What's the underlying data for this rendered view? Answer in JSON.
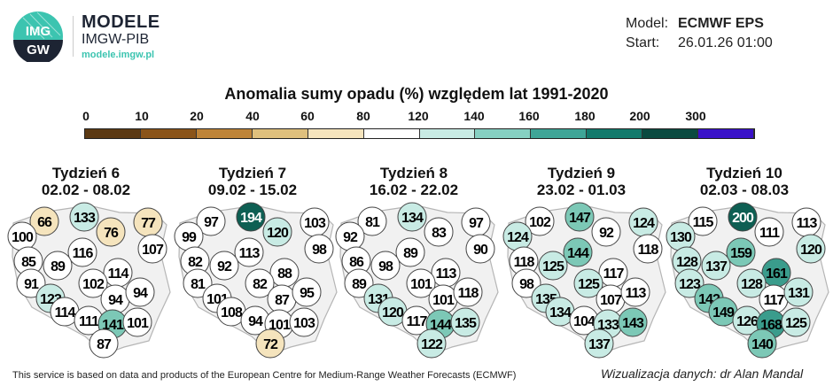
{
  "header": {
    "brand_name": "MODELE",
    "brand_org": "IMGW-PIB",
    "brand_url": "modele.imgw.pl",
    "logo_text": "IMGW",
    "model_label": "Model:",
    "model_value": "ECMWF EPS",
    "start_label": "Start:",
    "start_value": "26.01.26 01:00"
  },
  "title": "Anomalia sumy opadu (%) względem lat 1991-2020",
  "legend": {
    "ticks": [
      "0",
      "10",
      "20",
      "40",
      "60",
      "80",
      "120",
      "140",
      "160",
      "180",
      "200",
      "300"
    ],
    "colors": [
      "#5b3913",
      "#8a5419",
      "#be8438",
      "#dfc07d",
      "#f5e4bd",
      "#ffffff",
      "#c8ebe4",
      "#86d0c2",
      "#3fa597",
      "#137a6c",
      "#0b4a40",
      "#3a12c8"
    ]
  },
  "weeks": [
    {
      "label": "Tydzień 6",
      "range": "02.02 - 08.02",
      "values": [
        66,
        133,
        76,
        77,
        100,
        116,
        107,
        85,
        89,
        114,
        91,
        102,
        94,
        94,
        123,
        114,
        111,
        141,
        101,
        87
      ]
    },
    {
      "label": "Tydzień 7",
      "range": "09.02 - 15.02",
      "values": [
        97,
        194,
        120,
        103,
        99,
        113,
        98,
        82,
        92,
        88,
        81,
        82,
        87,
        95,
        101,
        108,
        94,
        101,
        103,
        72
      ]
    },
    {
      "label": "Tydzień 8",
      "range": "16.02 - 22.02",
      "values": [
        81,
        134,
        83,
        97,
        92,
        89,
        90,
        86,
        98,
        113,
        89,
        101,
        101,
        118,
        131,
        120,
        117,
        144,
        135,
        122
      ]
    },
    {
      "label": "Tydzień 9",
      "range": "23.02 - 01.03",
      "values": [
        102,
        147,
        92,
        124,
        124,
        144,
        118,
        118,
        125,
        117,
        98,
        125,
        107,
        113,
        135,
        134,
        104,
        133,
        143,
        137
      ]
    },
    {
      "label": "Tydzień 10",
      "range": "02.03 - 08.03",
      "values": [
        115,
        200,
        111,
        113,
        130,
        159,
        120,
        128,
        137,
        161,
        123,
        128,
        117,
        131,
        142,
        149,
        126,
        168,
        125,
        140
      ]
    }
  ],
  "footer": "This service is based on data and products of the European Centre for Medium-Range Weather Forecasts (ECMWF)",
  "credit": "Wizualizacja danych: dr Alan Mandal"
}
